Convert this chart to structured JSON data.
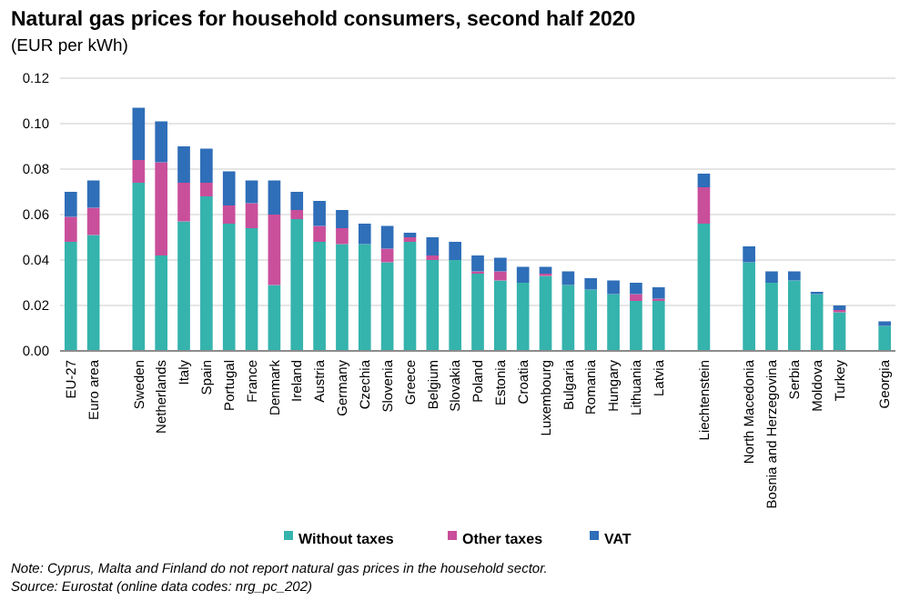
{
  "chart_data": {
    "type": "bar",
    "title": "Natural gas prices for household consumers, second half 2020",
    "subtitle": "(EUR per kWh)",
    "categories": [
      "EU-27",
      "Euro area",
      null,
      "Sweden",
      "Netherlands",
      "Italy",
      "Spain",
      "Portugal",
      "France",
      "Denmark",
      "Ireland",
      "Austria",
      "Germany",
      "Czechia",
      "Slovenia",
      "Greece",
      "Belgium",
      "Slovakia",
      "Poland",
      "Estonia",
      "Croatia",
      "Luxembourg",
      "Bulgaria",
      "Romania",
      "Hungary",
      "Lithuania",
      "Latvia",
      null,
      "Liechtenstein",
      null,
      "North Macedonia",
      "Bosnia and Herzegovina",
      "Serbia",
      "Moldova",
      "Turkey",
      null,
      "Georgia"
    ],
    "series": [
      {
        "name": "Without taxes",
        "color": "#35b3ad",
        "values": [
          0.048,
          0.051,
          null,
          0.074,
          0.042,
          0.057,
          0.068,
          0.056,
          0.054,
          0.029,
          0.058,
          0.048,
          0.047,
          0.047,
          0.039,
          0.048,
          0.04,
          0.04,
          0.034,
          0.031,
          0.03,
          0.033,
          0.029,
          0.027,
          0.025,
          0.022,
          0.022,
          null,
          0.056,
          null,
          0.039,
          0.03,
          0.031,
          0.025,
          0.017,
          null,
          0.011
        ]
      },
      {
        "name": "Other taxes",
        "color": "#c94f9a",
        "values": [
          0.011,
          0.012,
          null,
          0.01,
          0.041,
          0.017,
          0.006,
          0.008,
          0.011,
          0.031,
          0.004,
          0.007,
          0.007,
          0,
          0.006,
          0.002,
          0.002,
          0,
          0.001,
          0.004,
          0,
          0.001,
          0,
          0,
          0,
          0.003,
          0.001,
          null,
          0.016,
          null,
          0,
          0,
          0,
          0,
          0.001,
          null,
          0
        ]
      },
      {
        "name": "VAT",
        "color": "#2f6eb8",
        "values": [
          0.011,
          0.012,
          null,
          0.023,
          0.018,
          0.016,
          0.015,
          0.015,
          0.01,
          0.015,
          0.008,
          0.011,
          0.008,
          0.009,
          0.01,
          0.002,
          0.008,
          0.008,
          0.007,
          0.006,
          0.007,
          0.003,
          0.006,
          0.005,
          0.006,
          0.005,
          0.005,
          null,
          0.006,
          null,
          0.007,
          0.005,
          0.004,
          0.001,
          0.002,
          null,
          0.002
        ]
      }
    ],
    "stacked": true,
    "ylim": [
      0,
      0.12
    ],
    "yticks": [
      {
        "value": 0,
        "label": "0.00"
      },
      {
        "value": 0.02,
        "label": "0.02"
      },
      {
        "value": 0.04,
        "label": "0.04"
      },
      {
        "value": 0.06,
        "label": "0.06"
      },
      {
        "value": 0.08,
        "label": "0.08"
      },
      {
        "value": 0.1,
        "label": "0.10"
      },
      {
        "value": 0.12,
        "label": "0.12"
      }
    ],
    "grid": "y",
    "legend": "bottom",
    "annotations": [
      "Note: Cyprus, Malta and Finland do not report natural gas prices in the household sector.",
      "Source: Eurostat (online data codes: nrg_pc_202)"
    ]
  }
}
